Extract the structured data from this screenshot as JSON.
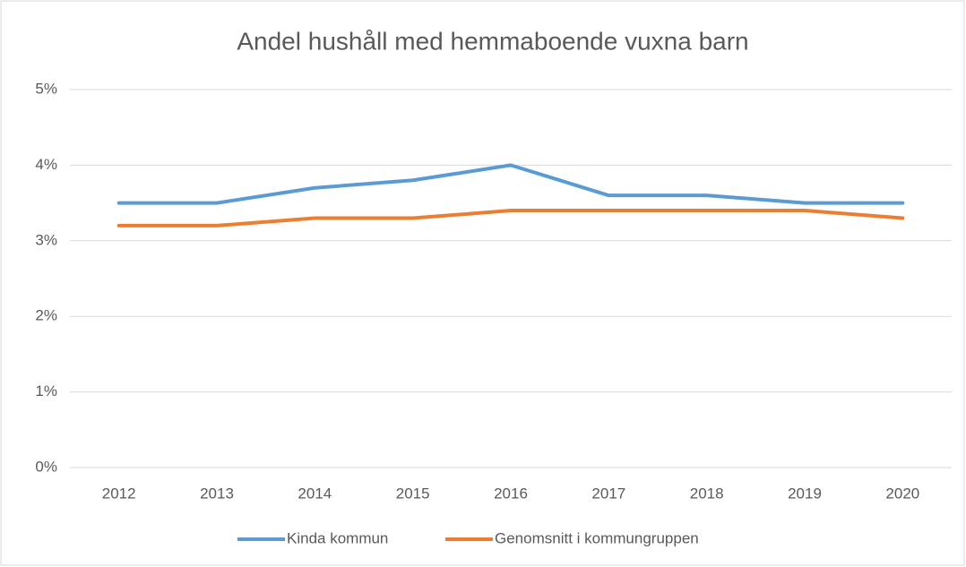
{
  "chart_data": {
    "type": "line",
    "title": "Andel hushåll med hemmaboende vuxna barn",
    "categories": [
      "2012",
      "2013",
      "2014",
      "2015",
      "2016",
      "2017",
      "2018",
      "2019",
      "2020"
    ],
    "series": [
      {
        "name": "Kinda kommun",
        "color": "#5b9bd5",
        "values": [
          3.5,
          3.5,
          3.7,
          3.8,
          4.0,
          3.6,
          3.6,
          3.5,
          3.5
        ]
      },
      {
        "name": "Genomsnitt i kommungruppen",
        "color": "#ed7d31",
        "values": [
          3.2,
          3.2,
          3.3,
          3.3,
          3.4,
          3.4,
          3.4,
          3.4,
          3.3
        ]
      }
    ],
    "ylim": [
      0,
      5
    ],
    "yticks": [
      {
        "value": 0,
        "label": "0%"
      },
      {
        "value": 1,
        "label": "1%"
      },
      {
        "value": 2,
        "label": "2%"
      },
      {
        "value": 3,
        "label": "3%"
      },
      {
        "value": 4,
        "label": "4%"
      },
      {
        "value": 5,
        "label": "5%"
      }
    ],
    "grid": true,
    "legend": "bottom"
  }
}
